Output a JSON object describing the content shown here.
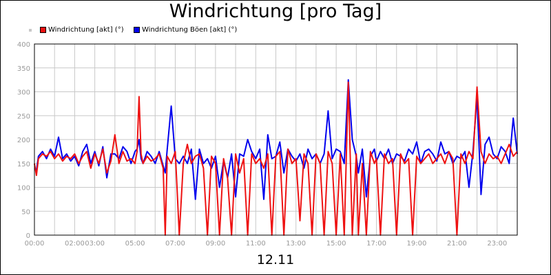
{
  "title": "Windrichtung [pro Tag]",
  "date_label": "12.11",
  "colors": {
    "series1": "#ee1111",
    "series2": "#0000ee",
    "grid": "#c8c8c8",
    "axis_text": "#999999"
  },
  "chart_data": {
    "type": "line",
    "title": "Windrichtung [pro Tag]",
    "xlabel": "12.11",
    "ylabel": "",
    "ylim": [
      0,
      400
    ],
    "xlim": [
      0,
      24
    ],
    "yticks": [
      0,
      50,
      100,
      150,
      200,
      250,
      300,
      350,
      400
    ],
    "xtick_labels": [
      "00:00",
      "02:00",
      "03:00",
      "05:00",
      "07:00",
      "09:00",
      "11:00",
      "13:00",
      "15:00",
      "17:00",
      "19:00",
      "21:00",
      "23:00"
    ],
    "xtick_hours": [
      0,
      2,
      3,
      5,
      7,
      9,
      11,
      13,
      15,
      17,
      19,
      21,
      23
    ],
    "grid": true,
    "legend_position": "top-left",
    "series": [
      {
        "name": "Windrichtung [akt] (°)",
        "color": "#ee1111",
        "x": [
          0,
          0.1,
          0.2,
          0.4,
          0.6,
          0.8,
          1.0,
          1.2,
          1.4,
          1.6,
          1.8,
          2.0,
          2.2,
          2.4,
          2.6,
          2.8,
          3.0,
          3.2,
          3.4,
          3.6,
          3.8,
          4.0,
          4.2,
          4.4,
          4.6,
          4.8,
          5.0,
          5.1,
          5.2,
          5.3,
          5.4,
          5.6,
          5.8,
          6.0,
          6.2,
          6.4,
          6.5,
          6.6,
          6.8,
          7.0,
          7.2,
          7.4,
          7.6,
          7.8,
          8.0,
          8.2,
          8.4,
          8.6,
          8.8,
          9.0,
          9.2,
          9.4,
          9.6,
          9.8,
          10.0,
          10.2,
          10.4,
          10.6,
          10.8,
          11.0,
          11.2,
          11.4,
          11.6,
          11.8,
          12.0,
          12.2,
          12.4,
          12.6,
          12.8,
          13.0,
          13.2,
          13.4,
          13.6,
          13.8,
          14.0,
          14.2,
          14.4,
          14.6,
          14.8,
          15.0,
          15.2,
          15.4,
          15.6,
          15.8,
          16.0,
          16.1,
          16.3,
          16.5,
          16.7,
          16.9,
          17.0,
          17.2,
          17.4,
          17.6,
          17.8,
          18.0,
          18.2,
          18.4,
          18.6,
          18.8,
          19.0,
          19.2,
          19.4,
          19.6,
          19.8,
          20.0,
          20.2,
          20.4,
          20.6,
          20.8,
          21.0,
          21.2,
          21.4,
          21.6,
          21.8,
          22.0,
          22.2,
          22.4,
          22.6,
          22.8,
          23.0,
          23.2,
          23.4,
          23.6,
          23.8,
          24.0
        ],
        "values": [
          150,
          125,
          160,
          170,
          165,
          175,
          160,
          170,
          155,
          165,
          160,
          170,
          150,
          165,
          175,
          140,
          170,
          150,
          180,
          130,
          155,
          210,
          150,
          175,
          155,
          160,
          150,
          175,
          290,
          170,
          150,
          165,
          155,
          160,
          170,
          140,
          0,
          165,
          150,
          175,
          0,
          150,
          190,
          150,
          165,
          170,
          140,
          0,
          165,
          150,
          0,
          160,
          120,
          0,
          170,
          130,
          160,
          0,
          170,
          150,
          160,
          140,
          170,
          0,
          165,
          175,
          0,
          180,
          150,
          160,
          30,
          170,
          150,
          0,
          170,
          150,
          0,
          175,
          150,
          0,
          170,
          0,
          320,
          0,
          170,
          0,
          150,
          0,
          175,
          150,
          160,
          0,
          170,
          150,
          160,
          0,
          170,
          150,
          160,
          0,
          165,
          150,
          160,
          170,
          150,
          160,
          170,
          150,
          175,
          160,
          0,
          170,
          150,
          175,
          160,
          310,
          175,
          150,
          170,
          160,
          165,
          150,
          170,
          190,
          165,
          175
        ]
      },
      {
        "name": "Windrichtung Böen [akt] (°)",
        "color": "#0000ee",
        "x": [
          0,
          0.1,
          0.2,
          0.4,
          0.6,
          0.8,
          1.0,
          1.2,
          1.4,
          1.6,
          1.8,
          2.0,
          2.2,
          2.4,
          2.6,
          2.8,
          3.0,
          3.2,
          3.4,
          3.6,
          3.8,
          4.0,
          4.2,
          4.4,
          4.6,
          4.8,
          5.0,
          5.1,
          5.2,
          5.3,
          5.4,
          5.6,
          5.8,
          6.0,
          6.2,
          6.4,
          6.5,
          6.6,
          6.8,
          7.0,
          7.2,
          7.4,
          7.6,
          7.8,
          8.0,
          8.2,
          8.4,
          8.6,
          8.8,
          9.0,
          9.2,
          9.4,
          9.6,
          9.8,
          10.0,
          10.2,
          10.4,
          10.6,
          10.8,
          11.0,
          11.2,
          11.4,
          11.6,
          11.8,
          12.0,
          12.2,
          12.4,
          12.6,
          12.8,
          13.0,
          13.2,
          13.4,
          13.6,
          13.8,
          14.0,
          14.2,
          14.4,
          14.6,
          14.8,
          15.0,
          15.2,
          15.4,
          15.6,
          15.8,
          16.0,
          16.1,
          16.3,
          16.5,
          16.7,
          16.9,
          17.0,
          17.2,
          17.4,
          17.6,
          17.8,
          18.0,
          18.2,
          18.4,
          18.6,
          18.8,
          19.0,
          19.2,
          19.4,
          19.6,
          19.8,
          20.0,
          20.2,
          20.4,
          20.6,
          20.8,
          21.0,
          21.2,
          21.4,
          21.6,
          21.8,
          22.0,
          22.2,
          22.4,
          22.6,
          22.8,
          23.0,
          23.2,
          23.4,
          23.6,
          23.8,
          24.0
        ],
        "values": [
          140,
          135,
          165,
          175,
          160,
          180,
          165,
          205,
          160,
          170,
          155,
          165,
          145,
          175,
          190,
          150,
          175,
          145,
          185,
          120,
          170,
          170,
          160,
          185,
          175,
          150,
          175,
          180,
          200,
          160,
          150,
          175,
          165,
          150,
          175,
          145,
          130,
          180,
          270,
          160,
          150,
          165,
          150,
          180,
          75,
          180,
          150,
          160,
          140,
          165,
          100,
          155,
          120,
          170,
          80,
          170,
          165,
          200,
          175,
          160,
          180,
          75,
          210,
          160,
          165,
          195,
          130,
          180,
          165,
          155,
          170,
          140,
          180,
          160,
          170,
          150,
          170,
          260,
          160,
          180,
          175,
          150,
          325,
          200,
          165,
          130,
          180,
          80,
          165,
          180,
          155,
          175,
          160,
          180,
          150,
          170,
          165,
          155,
          180,
          170,
          195,
          150,
          175,
          180,
          170,
          155,
          195,
          170,
          175,
          150,
          165,
          160,
          175,
          100,
          175,
          290,
          85,
          190,
          205,
          170,
          160,
          185,
          175,
          150,
          245,
          170
        ]
      }
    ]
  }
}
